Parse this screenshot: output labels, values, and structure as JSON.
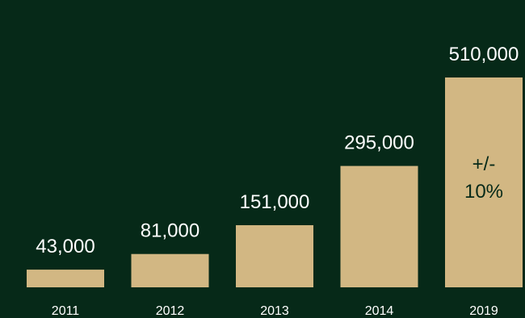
{
  "theme": {
    "background": "#062918",
    "bar_color": "#d2b783",
    "text_color": "#ffffff",
    "annotation_color": "#062918"
  },
  "chart_data": {
    "type": "bar",
    "categories": [
      "2011",
      "2012",
      "2013",
      "2014",
      "2019"
    ],
    "values": [
      43000,
      81000,
      151000,
      295000,
      510000
    ],
    "value_labels": [
      "43,000",
      "81,000",
      "151,000",
      "295,000",
      "510,000"
    ],
    "annotations": [
      {
        "category": "2019",
        "lines": [
          "+/-",
          "10%"
        ]
      }
    ],
    "title": "",
    "xlabel": "",
    "ylabel": "",
    "ylim": [
      0,
      510000
    ],
    "grid": false,
    "legend": "none"
  }
}
